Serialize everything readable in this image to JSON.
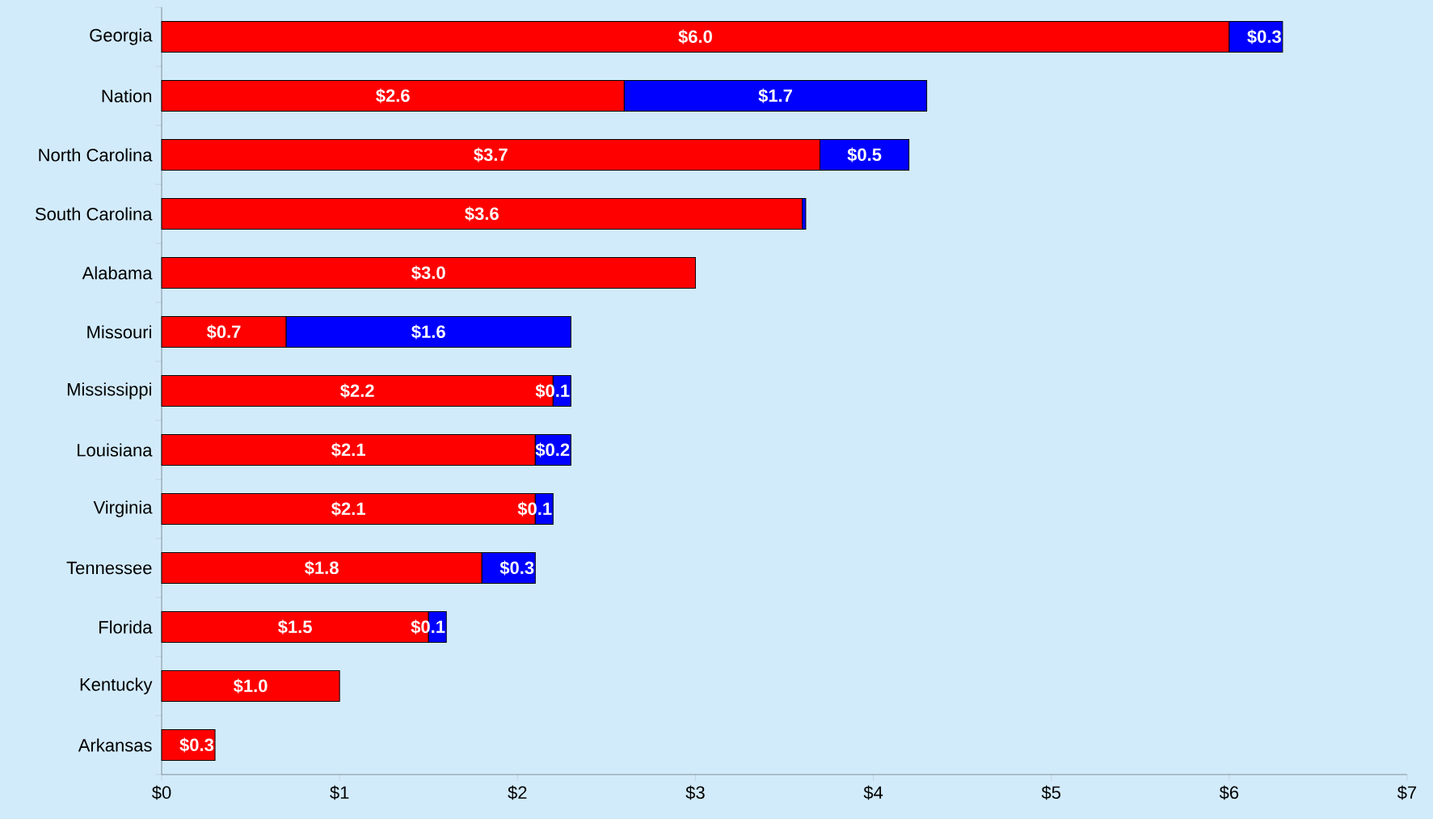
{
  "chart_data": {
    "type": "bar",
    "orientation": "horizontal",
    "stacked": true,
    "categories": [
      "Georgia",
      "Nation",
      "North Carolina",
      "South Carolina",
      "Alabama",
      "Missouri",
      "Mississippi",
      "Louisiana",
      "Virginia",
      "Tennessee",
      "Florida",
      "Kentucky",
      "Arkansas"
    ],
    "series": [
      {
        "color": "#ff0000",
        "values": [
          6.0,
          2.6,
          3.7,
          3.6,
          3.0,
          0.7,
          2.2,
          2.1,
          2.1,
          1.8,
          1.5,
          1.0,
          0.3
        ],
        "value_labels": [
          "$6.0",
          "$2.6",
          "$3.7",
          "$3.6",
          "$3.0",
          "$0.7",
          "$2.2",
          "$2.1",
          "$2.1",
          "$1.8",
          "$1.5",
          "$1.0",
          "$0.3"
        ]
      },
      {
        "color": "#0000ff",
        "values": [
          0.3,
          1.7,
          0.5,
          0.02,
          null,
          1.6,
          0.1,
          0.2,
          0.1,
          0.3,
          0.1,
          null,
          null
        ],
        "value_labels": [
          "$0.3",
          "$1.7",
          "$0.5",
          null,
          null,
          "$1.6",
          "$0.1",
          "$0.2",
          "$0.1",
          "$0.3",
          "$0.1",
          null,
          null
        ]
      }
    ],
    "xlim": [
      0,
      7
    ],
    "xticks": [
      {
        "value": 0,
        "label": "$0"
      },
      {
        "value": 1,
        "label": "$1"
      },
      {
        "value": 2,
        "label": "$2"
      },
      {
        "value": 3,
        "label": "$3"
      },
      {
        "value": 4,
        "label": "$4"
      },
      {
        "value": 5,
        "label": "$5"
      },
      {
        "value": 6,
        "label": "$6"
      },
      {
        "value": 7,
        "label": "$7"
      }
    ],
    "grid": false
  }
}
